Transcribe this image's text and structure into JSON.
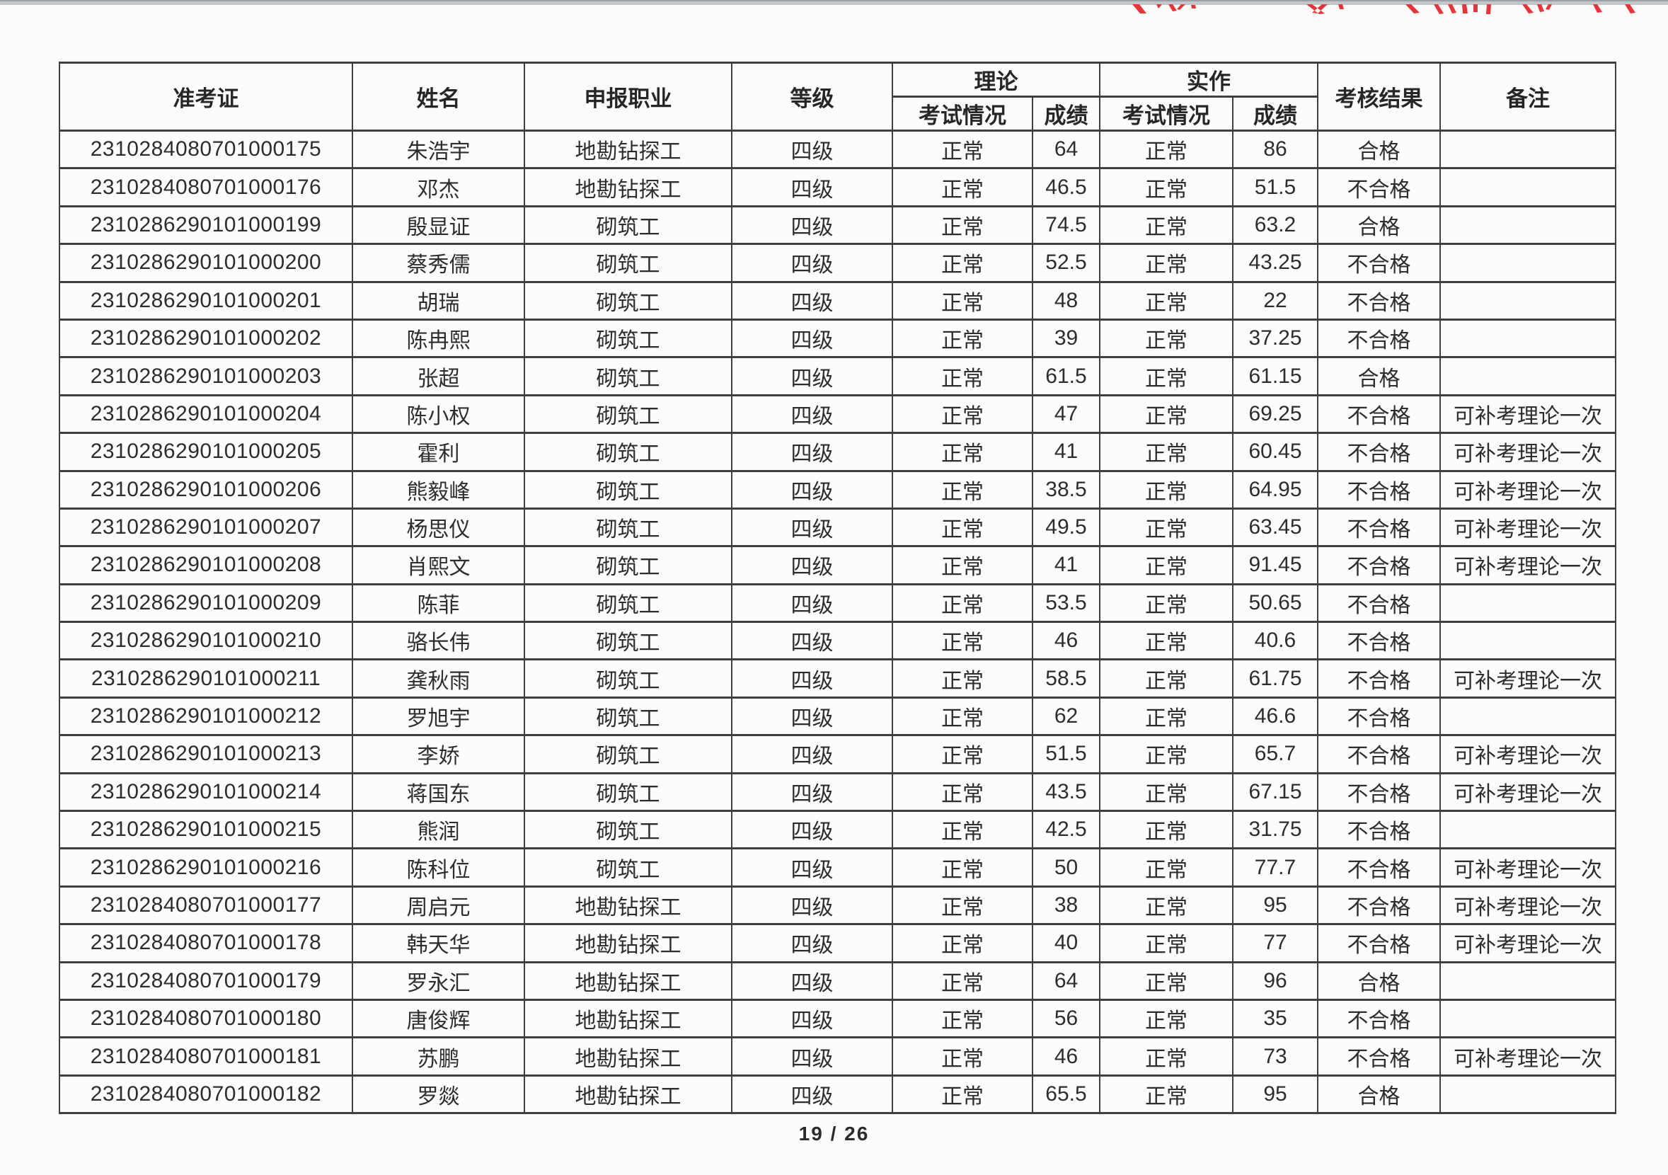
{
  "page": {
    "footer": "19 / 26"
  },
  "stamp": {
    "name": "red-stamp-remnant",
    "color": "#e5343a"
  },
  "colors": {
    "table_border": "#3f3f3f",
    "text": "#2d2d2d",
    "page_background": "#fcfcfb",
    "scan_edge_strip": "#c3c7cb"
  },
  "table": {
    "headers": {
      "admission_ticket": "准考证",
      "name": "姓名",
      "occupation": "申报职业",
      "level": "等级",
      "theory": "理论",
      "practical": "实作",
      "exam_status": "考试情况",
      "score": "成绩",
      "result": "考核结果",
      "remarks": "备注"
    },
    "rows": [
      [
        "2310284080701000175",
        "朱浩宇",
        "地勘钻探工",
        "四级",
        "正常",
        "64",
        "正常",
        "86",
        "合格",
        ""
      ],
      [
        "2310284080701000176",
        "邓杰",
        "地勘钻探工",
        "四级",
        "正常",
        "46.5",
        "正常",
        "51.5",
        "不合格",
        ""
      ],
      [
        "2310286290101000199",
        "殷显证",
        "砌筑工",
        "四级",
        "正常",
        "74.5",
        "正常",
        "63.2",
        "合格",
        ""
      ],
      [
        "2310286290101000200",
        "蔡秀儒",
        "砌筑工",
        "四级",
        "正常",
        "52.5",
        "正常",
        "43.25",
        "不合格",
        ""
      ],
      [
        "2310286290101000201",
        "胡瑞",
        "砌筑工",
        "四级",
        "正常",
        "48",
        "正常",
        "22",
        "不合格",
        ""
      ],
      [
        "2310286290101000202",
        "陈冉熙",
        "砌筑工",
        "四级",
        "正常",
        "39",
        "正常",
        "37.25",
        "不合格",
        ""
      ],
      [
        "2310286290101000203",
        "张超",
        "砌筑工",
        "四级",
        "正常",
        "61.5",
        "正常",
        "61.15",
        "合格",
        ""
      ],
      [
        "2310286290101000204",
        "陈小权",
        "砌筑工",
        "四级",
        "正常",
        "47",
        "正常",
        "69.25",
        "不合格",
        "可补考理论一次"
      ],
      [
        "2310286290101000205",
        "霍利",
        "砌筑工",
        "四级",
        "正常",
        "41",
        "正常",
        "60.45",
        "不合格",
        "可补考理论一次"
      ],
      [
        "2310286290101000206",
        "熊毅峰",
        "砌筑工",
        "四级",
        "正常",
        "38.5",
        "正常",
        "64.95",
        "不合格",
        "可补考理论一次"
      ],
      [
        "2310286290101000207",
        "杨思仪",
        "砌筑工",
        "四级",
        "正常",
        "49.5",
        "正常",
        "63.45",
        "不合格",
        "可补考理论一次"
      ],
      [
        "2310286290101000208",
        "肖熙文",
        "砌筑工",
        "四级",
        "正常",
        "41",
        "正常",
        "91.45",
        "不合格",
        "可补考理论一次"
      ],
      [
        "2310286290101000209",
        "陈菲",
        "砌筑工",
        "四级",
        "正常",
        "53.5",
        "正常",
        "50.65",
        "不合格",
        ""
      ],
      [
        "2310286290101000210",
        "骆长伟",
        "砌筑工",
        "四级",
        "正常",
        "46",
        "正常",
        "40.6",
        "不合格",
        ""
      ],
      [
        "2310286290101000211",
        "龚秋雨",
        "砌筑工",
        "四级",
        "正常",
        "58.5",
        "正常",
        "61.75",
        "不合格",
        "可补考理论一次"
      ],
      [
        "2310286290101000212",
        "罗旭宇",
        "砌筑工",
        "四级",
        "正常",
        "62",
        "正常",
        "46.6",
        "不合格",
        ""
      ],
      [
        "2310286290101000213",
        "李娇",
        "砌筑工",
        "四级",
        "正常",
        "51.5",
        "正常",
        "65.7",
        "不合格",
        "可补考理论一次"
      ],
      [
        "2310286290101000214",
        "蒋国东",
        "砌筑工",
        "四级",
        "正常",
        "43.5",
        "正常",
        "67.15",
        "不合格",
        "可补考理论一次"
      ],
      [
        "2310286290101000215",
        "熊润",
        "砌筑工",
        "四级",
        "正常",
        "42.5",
        "正常",
        "31.75",
        "不合格",
        ""
      ],
      [
        "2310286290101000216",
        "陈科位",
        "砌筑工",
        "四级",
        "正常",
        "50",
        "正常",
        "77.7",
        "不合格",
        "可补考理论一次"
      ],
      [
        "2310284080701000177",
        "周启元",
        "地勘钻探工",
        "四级",
        "正常",
        "38",
        "正常",
        "95",
        "不合格",
        "可补考理论一次"
      ],
      [
        "2310284080701000178",
        "韩天华",
        "地勘钻探工",
        "四级",
        "正常",
        "40",
        "正常",
        "77",
        "不合格",
        "可补考理论一次"
      ],
      [
        "2310284080701000179",
        "罗永汇",
        "地勘钻探工",
        "四级",
        "正常",
        "64",
        "正常",
        "96",
        "合格",
        ""
      ],
      [
        "2310284080701000180",
        "唐俊辉",
        "地勘钻探工",
        "四级",
        "正常",
        "56",
        "正常",
        "35",
        "不合格",
        ""
      ],
      [
        "2310284080701000181",
        "苏鹏",
        "地勘钻探工",
        "四级",
        "正常",
        "46",
        "正常",
        "73",
        "不合格",
        "可补考理论一次"
      ],
      [
        "2310284080701000182",
        "罗燚",
        "地勘钻探工",
        "四级",
        "正常",
        "65.5",
        "正常",
        "95",
        "合格",
        ""
      ]
    ]
  }
}
